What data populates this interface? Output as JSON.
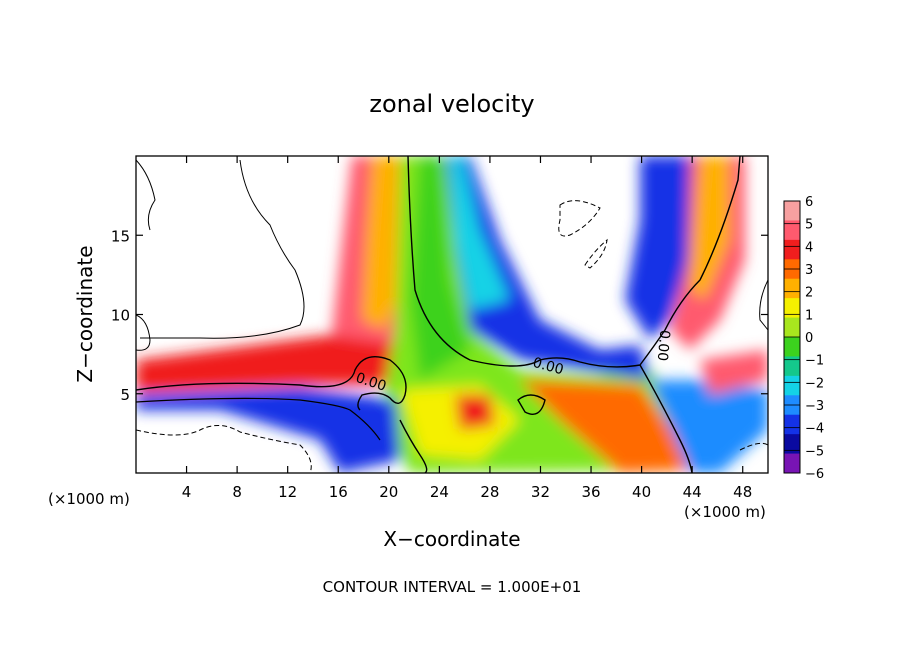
{
  "chart_data": {
    "type": "heatmap",
    "title": "zonal velocity",
    "xlabel": "X−coordinate",
    "ylabel": "Z−coordinate",
    "x_unit_left": "(×1000 m)",
    "x_unit_right": "(×1000 m)",
    "footer": "CONTOUR INTERVAL = 1.000E+01",
    "xlim": [
      0,
      50
    ],
    "ylim": [
      0,
      20
    ],
    "x_ticks": [
      4,
      8,
      12,
      16,
      20,
      24,
      28,
      32,
      36,
      40,
      44,
      48
    ],
    "y_ticks": [
      5,
      10,
      15
    ],
    "contour_labels": [
      "0.00",
      "0.00",
      "0.00"
    ],
    "colorbar": {
      "ticks": [
        "6",
        "5",
        "4",
        "3",
        "2",
        "1",
        "0",
        "−1",
        "−2",
        "−3",
        "−4",
        "−5",
        "−6"
      ],
      "colors": [
        "#f7a0a0",
        "#ff5a6e",
        "#f01e1e",
        "#ff6a00",
        "#ffb000",
        "#f5f000",
        "#a8e61e",
        "#3cd21e",
        "#14c88c",
        "#14d2e6",
        "#1e8cff",
        "#1432e6",
        "#0a0aa0",
        "#7814b4"
      ]
    }
  }
}
